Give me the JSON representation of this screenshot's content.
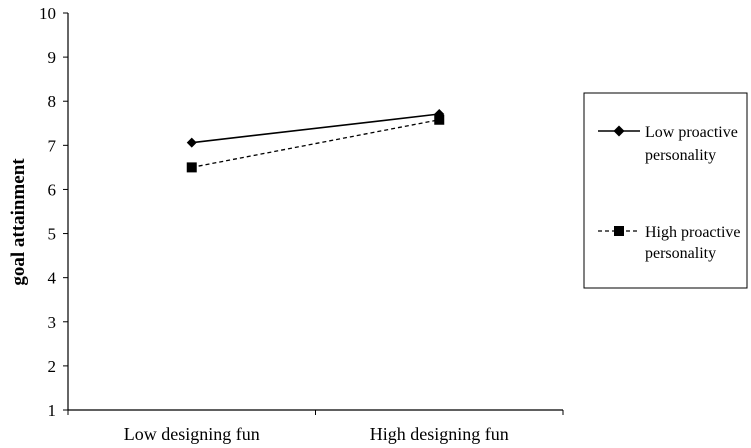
{
  "chart_data": {
    "type": "line",
    "categories": [
      "Low designing fun",
      "High designing fun"
    ],
    "series": [
      {
        "name": "Low proactive personality",
        "values": [
          7.06,
          7.71
        ],
        "marker": "diamond",
        "line": "solid"
      },
      {
        "name": "High proactive personality",
        "values": [
          6.5,
          7.58
        ],
        "marker": "square",
        "line": "dashed"
      }
    ],
    "title": "",
    "xlabel": "",
    "ylabel": "goal attainment",
    "ylim": [
      1,
      10
    ],
    "yticks": [
      "1",
      "2",
      "3",
      "4",
      "5",
      "6",
      "7",
      "8",
      "9",
      "10"
    ],
    "grid": false,
    "legend": {
      "placement": "right",
      "entries": [
        {
          "line1": "Low proactive",
          "line2": "personality"
        },
        {
          "line1": "High proactive",
          "line2": "personality"
        }
      ]
    },
    "colors": {
      "line": "#000000",
      "background": "#ffffff"
    }
  }
}
